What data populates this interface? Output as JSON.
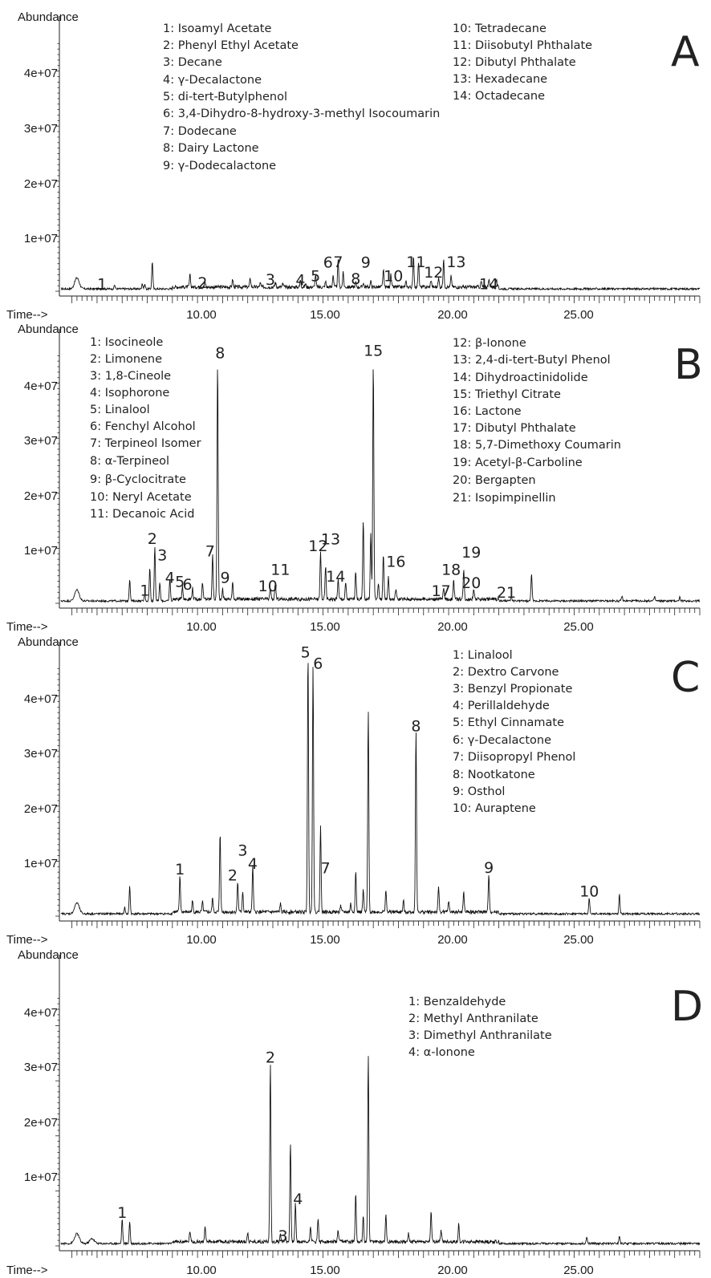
{
  "chart_data": [
    {
      "type": "line",
      "panel": "A",
      "ylabel": "Abundance",
      "xlabel": "Time-->",
      "y_ticks": [
        "1e+07",
        "2e+07",
        "3e+07",
        "4e+07"
      ],
      "x_ticks": [
        "10.00",
        "15.00",
        "20.00",
        "25.00"
      ],
      "xlim": [
        4.5,
        30.0
      ],
      "ylim": [
        0,
        50000000
      ],
      "grid": false,
      "legend": [
        [
          "1: Isoamyl Acetate",
          "2: Phenyl Ethyl Acetate",
          "3: Decane",
          "4: γ-Decalactone",
          "5: di-tert-Butylphenol",
          "6: 3,4-Dihydro-8-hydroxy-3-methyl Isocoumarin",
          "7: Dodecane",
          "8: Dairy Lactone",
          "9: γ-Dodecalactone"
        ],
        [
          "10: Tetradecane",
          "11: Diisobutyl Phthalate",
          "12: Dibutyl Phthalate",
          "13: Hexadecane",
          "14: Octadecane"
        ]
      ],
      "peaks": [
        {
          "x": 5.2,
          "y": 2000000
        },
        {
          "x": 6.7,
          "y": 700000
        },
        {
          "x": 7.8,
          "y": 1000000
        },
        {
          "x": 7.9,
          "y": 800000
        },
        {
          "x": 8.2,
          "y": 5000000
        },
        {
          "x": 9.7,
          "y": 2200000
        },
        {
          "x": 10.3,
          "y": 900000
        },
        {
          "x": 11.4,
          "y": 1400000
        },
        {
          "x": 12.1,
          "y": 1600000
        },
        {
          "x": 12.5,
          "y": 700000
        },
        {
          "x": 13.1,
          "y": 900000
        },
        {
          "x": 13.4,
          "y": 600000
        },
        {
          "x": 14.1,
          "y": 1300000
        },
        {
          "x": 14.3,
          "y": 600000
        },
        {
          "x": 14.7,
          "y": 2200000
        },
        {
          "x": 15.1,
          "y": 1000000
        },
        {
          "x": 15.4,
          "y": 2200000
        },
        {
          "x": 15.6,
          "y": 4800000
        },
        {
          "x": 15.8,
          "y": 2600000
        },
        {
          "x": 16.3,
          "y": 900000
        },
        {
          "x": 16.6,
          "y": 800000
        },
        {
          "x": 16.9,
          "y": 1000000
        },
        {
          "x": 17.4,
          "y": 3100000
        },
        {
          "x": 17.7,
          "y": 2200000
        },
        {
          "x": 18.3,
          "y": 900000
        },
        {
          "x": 18.6,
          "y": 5400000
        },
        {
          "x": 18.8,
          "y": 4600000
        },
        {
          "x": 19.3,
          "y": 1300000
        },
        {
          "x": 19.6,
          "y": 1600000
        },
        {
          "x": 19.8,
          "y": 4900000
        },
        {
          "x": 20.1,
          "y": 2000000
        },
        {
          "x": 21.3,
          "y": 1000000
        },
        {
          "x": 21.6,
          "y": 1500000
        },
        {
          "x": 21.9,
          "y": 1300000
        }
      ],
      "labels": [
        {
          "text": "1",
          "x": 6.2,
          "y": 400000
        },
        {
          "text": "2",
          "x": 10.2,
          "y": 600000
        },
        {
          "text": "3",
          "x": 12.9,
          "y": 1200000
        },
        {
          "text": "4",
          "x": 14.1,
          "y": 1100000
        },
        {
          "text": "5",
          "x": 14.7,
          "y": 1800000
        },
        {
          "text": "6",
          "x": 15.2,
          "y": 4300000
        },
        {
          "text": "7",
          "x": 15.6,
          "y": 4400000
        },
        {
          "text": "8",
          "x": 16.3,
          "y": 1300000
        },
        {
          "text": "9",
          "x": 16.7,
          "y": 4300000
        },
        {
          "text": "10",
          "x": 17.8,
          "y": 1800000
        },
        {
          "text": "11",
          "x": 18.7,
          "y": 4400000
        },
        {
          "text": "12",
          "x": 19.4,
          "y": 2500000
        },
        {
          "text": "13",
          "x": 20.3,
          "y": 4400000
        },
        {
          "text": "14",
          "x": 21.6,
          "y": 400000
        }
      ]
    },
    {
      "type": "line",
      "panel": "B",
      "ylabel": "Abundance",
      "xlabel": "Time-->",
      "y_ticks": [
        "1e+07",
        "2e+07",
        "3e+07",
        "4e+07"
      ],
      "x_ticks": [
        "10.00",
        "15.00",
        "20.00",
        "25.00"
      ],
      "xlim": [
        4.5,
        30.0
      ],
      "ylim": [
        0,
        50000000
      ],
      "grid": false,
      "legend": [
        [
          "1: Isocineole",
          "2: Limonene",
          "3: 1,8-Cineole",
          "4: Isophorone",
          "5: Linalool",
          "6: Fenchyl Alcohol",
          "7: Terpineol Isomer",
          "8: α-Terpineol",
          "9: β-Cyclocitrate",
          "10: Neryl Acetate",
          "11: Decanoic Acid"
        ],
        [
          "12: β-Ionone",
          "13: 2,4-di-tert-Butyl Phenol",
          "14: Dihydroactinidolide",
          "15: Triethyl Citrate",
          "16: Lactone",
          "17: Dibutyl Phthalate",
          "18: 5,7-Dimethoxy Coumarin",
          "19: Acetyl-β-Carboline",
          "20: Bergapten",
          "21: Isopimpinellin"
        ]
      ],
      "peaks": [
        {
          "x": 5.2,
          "y": 2000000
        },
        {
          "x": 7.3,
          "y": 4000000
        },
        {
          "x": 7.9,
          "y": 1200000
        },
        {
          "x": 8.1,
          "y": 6000000
        },
        {
          "x": 8.3,
          "y": 10000000
        },
        {
          "x": 8.5,
          "y": 3300000
        },
        {
          "x": 8.9,
          "y": 4000000
        },
        {
          "x": 9.4,
          "y": 2500000
        },
        {
          "x": 9.8,
          "y": 2000000
        },
        {
          "x": 10.2,
          "y": 3000000
        },
        {
          "x": 10.6,
          "y": 8000000
        },
        {
          "x": 10.8,
          "y": 43000000
        },
        {
          "x": 11.0,
          "y": 1800000
        },
        {
          "x": 11.4,
          "y": 3000000
        },
        {
          "x": 12.9,
          "y": 2000000
        },
        {
          "x": 13.1,
          "y": 3000000
        },
        {
          "x": 14.9,
          "y": 8500000
        },
        {
          "x": 15.1,
          "y": 6000000
        },
        {
          "x": 15.6,
          "y": 3700000
        },
        {
          "x": 15.9,
          "y": 3000000
        },
        {
          "x": 16.3,
          "y": 5000000
        },
        {
          "x": 16.6,
          "y": 14000000
        },
        {
          "x": 16.9,
          "y": 12000000
        },
        {
          "x": 17.0,
          "y": 43000000
        },
        {
          "x": 17.2,
          "y": 3000000
        },
        {
          "x": 17.4,
          "y": 8000000
        },
        {
          "x": 17.6,
          "y": 4000000
        },
        {
          "x": 17.9,
          "y": 2000000
        },
        {
          "x": 19.8,
          "y": 2000000
        },
        {
          "x": 20.2,
          "y": 3500000
        },
        {
          "x": 20.6,
          "y": 5300000
        },
        {
          "x": 21.0,
          "y": 2000000
        },
        {
          "x": 22.5,
          "y": 800000
        },
        {
          "x": 23.3,
          "y": 5000000
        },
        {
          "x": 26.9,
          "y": 900000
        },
        {
          "x": 28.2,
          "y": 800000
        },
        {
          "x": 29.2,
          "y": 700000
        }
      ],
      "labels": [
        {
          "text": "1",
          "x": 7.9,
          "y": 1400000
        },
        {
          "text": "2",
          "x": 8.2,
          "y": 10800000
        },
        {
          "text": "3",
          "x": 8.6,
          "y": 7800000
        },
        {
          "text": "4",
          "x": 8.9,
          "y": 3700000
        },
        {
          "text": "5",
          "x": 9.3,
          "y": 3000000
        },
        {
          "text": "6",
          "x": 9.6,
          "y": 2500000
        },
        {
          "text": "7",
          "x": 10.5,
          "y": 8500000
        },
        {
          "text": "8",
          "x": 10.9,
          "y": 44500000
        },
        {
          "text": "9",
          "x": 11.1,
          "y": 3700000
        },
        {
          "text": "10",
          "x": 12.8,
          "y": 2200000
        },
        {
          "text": "11",
          "x": 13.3,
          "y": 5200000
        },
        {
          "text": "12",
          "x": 14.8,
          "y": 9500000
        },
        {
          "text": "13",
          "x": 15.3,
          "y": 10700000
        },
        {
          "text": "14",
          "x": 15.5,
          "y": 3900000
        },
        {
          "text": "15",
          "x": 17.0,
          "y": 45000000
        },
        {
          "text": "16",
          "x": 17.9,
          "y": 6600000
        },
        {
          "text": "17",
          "x": 19.7,
          "y": 1300000
        },
        {
          "text": "18",
          "x": 20.1,
          "y": 5200000
        },
        {
          "text": "19",
          "x": 20.9,
          "y": 8300000
        },
        {
          "text": "20",
          "x": 20.9,
          "y": 2800000
        },
        {
          "text": "21",
          "x": 22.3,
          "y": 1000000
        }
      ]
    },
    {
      "type": "line",
      "panel": "C",
      "ylabel": "Abundance",
      "xlabel": "Time-->",
      "y_ticks": [
        "1e+07",
        "2e+07",
        "3e+07",
        "4e+07"
      ],
      "x_ticks": [
        "10.00",
        "15.00",
        "20.00",
        "25.00"
      ],
      "xlim": [
        4.5,
        30.0
      ],
      "ylim": [
        0,
        50000000
      ],
      "grid": false,
      "legend": [
        [
          "1: Linalool",
          "2: Dextro Carvone",
          "3: Benzyl Propionate",
          "4: Perillaldehyde",
          "5: Ethyl Cinnamate",
          "6: γ-Decalactone",
          "7: Diisopropyl Phenol",
          "8: Nootkatone",
          "9: Osthol",
          "10: Auraptene"
        ]
      ],
      "peaks": [
        {
          "x": 5.2,
          "y": 2000000
        },
        {
          "x": 7.1,
          "y": 1200000
        },
        {
          "x": 7.3,
          "y": 5000000
        },
        {
          "x": 9.3,
          "y": 6500000
        },
        {
          "x": 9.8,
          "y": 2000000
        },
        {
          "x": 10.2,
          "y": 1800000
        },
        {
          "x": 10.6,
          "y": 2500000
        },
        {
          "x": 10.9,
          "y": 14500000
        },
        {
          "x": 11.6,
          "y": 5500000
        },
        {
          "x": 11.8,
          "y": 3800000
        },
        {
          "x": 12.2,
          "y": 8300000
        },
        {
          "x": 13.3,
          "y": 1500000
        },
        {
          "x": 14.4,
          "y": 47000000
        },
        {
          "x": 14.6,
          "y": 45000000
        },
        {
          "x": 14.9,
          "y": 15500000
        },
        {
          "x": 15.7,
          "y": 1200000
        },
        {
          "x": 16.1,
          "y": 1500000
        },
        {
          "x": 16.3,
          "y": 7500000
        },
        {
          "x": 16.6,
          "y": 4000000
        },
        {
          "x": 16.8,
          "y": 36500000
        },
        {
          "x": 17.5,
          "y": 4000000
        },
        {
          "x": 18.2,
          "y": 2000000
        },
        {
          "x": 18.7,
          "y": 33000000
        },
        {
          "x": 19.6,
          "y": 4500000
        },
        {
          "x": 20.0,
          "y": 2000000
        },
        {
          "x": 20.6,
          "y": 3500000
        },
        {
          "x": 21.6,
          "y": 7000000
        },
        {
          "x": 25.6,
          "y": 2900000
        },
        {
          "x": 26.8,
          "y": 3500000
        }
      ],
      "labels": [
        {
          "text": "1",
          "x": 9.3,
          "y": 7600000
        },
        {
          "text": "2",
          "x": 11.4,
          "y": 6500000
        },
        {
          "text": "3",
          "x": 11.8,
          "y": 11000000
        },
        {
          "text": "4",
          "x": 12.2,
          "y": 8600000
        },
        {
          "text": "5",
          "x": 14.3,
          "y": 47000000
        },
        {
          "text": "6",
          "x": 14.8,
          "y": 45000000
        },
        {
          "text": "7",
          "x": 15.1,
          "y": 7800000
        },
        {
          "text": "8",
          "x": 18.7,
          "y": 33600000
        },
        {
          "text": "9",
          "x": 21.6,
          "y": 7900000
        },
        {
          "text": "10",
          "x": 25.6,
          "y": 3600000
        }
      ]
    },
    {
      "type": "line",
      "panel": "D",
      "ylabel": "Abundance",
      "xlabel": "Time-->",
      "y_ticks": [
        "1e+07",
        "2e+07",
        "3e+07",
        "4e+07"
      ],
      "x_ticks": [
        "10.00",
        "15.00",
        "20.00",
        "25.00"
      ],
      "xlim": [
        4.5,
        30.0
      ],
      "ylim": [
        0,
        50000000
      ],
      "grid": false,
      "legend": [
        [
          "1: Benzaldehyde",
          "2: Methyl Anthranilate",
          "3: Dimethyl Anthranilate",
          "4: α-Ionone"
        ]
      ],
      "peaks": [
        {
          "x": 5.2,
          "y": 1800000
        },
        {
          "x": 5.8,
          "y": 900000
        },
        {
          "x": 7.0,
          "y": 4500000
        },
        {
          "x": 7.3,
          "y": 4000000
        },
        {
          "x": 9.7,
          "y": 2000000
        },
        {
          "x": 10.3,
          "y": 2500000
        },
        {
          "x": 12.0,
          "y": 1800000
        },
        {
          "x": 12.9,
          "y": 32500000
        },
        {
          "x": 13.3,
          "y": 1500000
        },
        {
          "x": 13.5,
          "y": 1000000
        },
        {
          "x": 13.7,
          "y": 18000000
        },
        {
          "x": 13.9,
          "y": 7000000
        },
        {
          "x": 14.5,
          "y": 3000000
        },
        {
          "x": 14.8,
          "y": 4300000
        },
        {
          "x": 15.6,
          "y": 2000000
        },
        {
          "x": 16.3,
          "y": 9000000
        },
        {
          "x": 16.6,
          "y": 4500000
        },
        {
          "x": 16.8,
          "y": 34000000
        },
        {
          "x": 17.5,
          "y": 5000000
        },
        {
          "x": 18.4,
          "y": 1500000
        },
        {
          "x": 19.3,
          "y": 5500000
        },
        {
          "x": 19.7,
          "y": 2200000
        },
        {
          "x": 20.4,
          "y": 3100000
        },
        {
          "x": 25.5,
          "y": 1200000
        },
        {
          "x": 26.8,
          "y": 1400000
        }
      ],
      "labels": [
        {
          "text": "1",
          "x": 7.0,
          "y": 5100000
        },
        {
          "text": "2",
          "x": 12.9,
          "y": 33300000
        },
        {
          "text": "3",
          "x": 13.4,
          "y": 900000
        },
        {
          "text": "4",
          "x": 14.0,
          "y": 7600000
        }
      ]
    }
  ]
}
